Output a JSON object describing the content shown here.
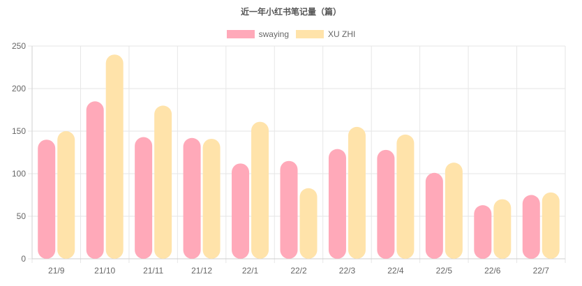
{
  "chart_data": {
    "type": "bar",
    "title": "近一年小红书笔记量（篇）",
    "categories": [
      "21/9",
      "21/10",
      "21/11",
      "21/12",
      "22/1",
      "22/2",
      "22/3",
      "22/4",
      "22/5",
      "22/6",
      "22/7"
    ],
    "series": [
      {
        "name": "swaying",
        "color": "#ffa9b9",
        "values": [
          140,
          185,
          143,
          142,
          112,
          115,
          129,
          128,
          101,
          63,
          75
        ]
      },
      {
        "name": "XU ZHI",
        "color": "#ffe3aa",
        "values": [
          150,
          240,
          180,
          141,
          161,
          83,
          155,
          146,
          113,
          70,
          78
        ]
      }
    ],
    "ylim": [
      0,
      250
    ],
    "yticks": [
      0,
      50,
      100,
      150,
      200,
      250
    ],
    "grid": true,
    "legend_position": "top"
  }
}
